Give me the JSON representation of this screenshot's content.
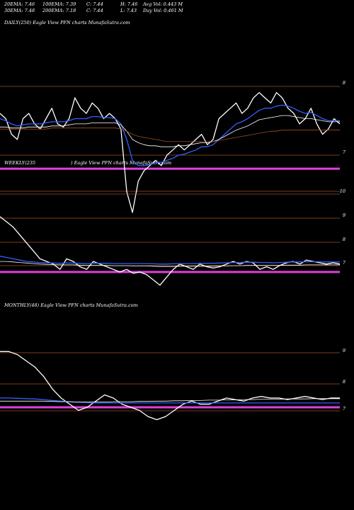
{
  "header": {
    "row1": [
      "20EMA: 7.46",
      "100EMA: 7.39",
      "C: 7.44",
      "H: 7.46",
      "Avg Vol: 0.443 M"
    ],
    "row2": [
      "30EMA: 7.48",
      "200EMA: 7.18",
      "C: 7.44",
      "L: 7.43",
      "Day Vol: 0.461 M"
    ]
  },
  "panels": {
    "daily": {
      "label": "DAILY(250) Eagle  View  PFN  charts MunafaSutra.com"
    },
    "weekly": {
      "label_left": "WEEKLY(235",
      "label_right": ") Eagle  View  PFN  charts MunafaSutra.com"
    },
    "monthly": {
      "label": "MONTHLY(48) Eagle  View  PFN  charts MunafaSutra.com"
    }
  },
  "colors": {
    "price": "#ffffff",
    "ema_blue": "#3060ff",
    "ema_alt": "#ffffff",
    "magenta": "#e040e0",
    "brown": "#a05020",
    "background": "#000000"
  },
  "chart_data": [
    {
      "type": "line",
      "name": "daily",
      "yticks": [
        "8",
        "7"
      ],
      "ylim": [
        6.6,
        8.4
      ],
      "series": [
        {
          "name": "price",
          "values": [
            7.55,
            7.5,
            7.35,
            7.3,
            7.5,
            7.55,
            7.45,
            7.4,
            7.5,
            7.6,
            7.45,
            7.42,
            7.5,
            7.7,
            7.6,
            7.55,
            7.65,
            7.6,
            7.5,
            7.55,
            7.5,
            7.4,
            6.8,
            6.6,
            6.9,
            7.0,
            7.05,
            7.1,
            7.05,
            7.15,
            7.2,
            7.25,
            7.2,
            7.25,
            7.3,
            7.35,
            7.25,
            7.3,
            7.5,
            7.55,
            7.6,
            7.65,
            7.55,
            7.6,
            7.7,
            7.75,
            7.7,
            7.65,
            7.75,
            7.7,
            7.6,
            7.55,
            7.45,
            7.5,
            7.6,
            7.45,
            7.35,
            7.4,
            7.5,
            7.45
          ]
        },
        {
          "name": "ema_blue",
          "values": [
            7.5,
            7.48,
            7.45,
            7.43,
            7.44,
            7.45,
            7.45,
            7.45,
            7.46,
            7.47,
            7.47,
            7.47,
            7.48,
            7.5,
            7.5,
            7.5,
            7.52,
            7.52,
            7.51,
            7.51,
            7.5,
            7.45,
            7.3,
            7.1,
            7.05,
            7.05,
            7.06,
            7.08,
            7.08,
            7.1,
            7.12,
            7.15,
            7.16,
            7.18,
            7.2,
            7.23,
            7.23,
            7.25,
            7.3,
            7.35,
            7.4,
            7.45,
            7.47,
            7.5,
            7.54,
            7.58,
            7.6,
            7.6,
            7.62,
            7.63,
            7.62,
            7.6,
            7.57,
            7.55,
            7.56,
            7.53,
            7.5,
            7.48,
            7.48,
            7.48
          ]
        },
        {
          "name": "ema_white",
          "values": [
            7.42,
            7.42,
            7.41,
            7.41,
            7.41,
            7.42,
            7.42,
            7.42,
            7.42,
            7.43,
            7.43,
            7.43,
            7.44,
            7.45,
            7.45,
            7.45,
            7.46,
            7.46,
            7.46,
            7.46,
            7.46,
            7.44,
            7.38,
            7.3,
            7.27,
            7.25,
            7.24,
            7.24,
            7.23,
            7.23,
            7.23,
            7.24,
            7.24,
            7.25,
            7.26,
            7.27,
            7.27,
            7.28,
            7.3,
            7.33,
            7.36,
            7.39,
            7.41,
            7.43,
            7.46,
            7.49,
            7.5,
            7.51,
            7.52,
            7.53,
            7.53,
            7.52,
            7.51,
            7.5,
            7.5,
            7.49,
            7.48,
            7.47,
            7.47,
            7.47
          ]
        },
        {
          "name": "ema_brown",
          "values": [
            7.4,
            7.4,
            7.4,
            7.4,
            7.4,
            7.4,
            7.4,
            7.4,
            7.4,
            7.41,
            7.41,
            7.41,
            7.41,
            7.41,
            7.41,
            7.41,
            7.41,
            7.41,
            7.41,
            7.41,
            7.41,
            7.4,
            7.38,
            7.35,
            7.33,
            7.32,
            7.31,
            7.3,
            7.29,
            7.28,
            7.28,
            7.28,
            7.28,
            7.28,
            7.28,
            7.28,
            7.28,
            7.28,
            7.29,
            7.3,
            7.31,
            7.32,
            7.33,
            7.34,
            7.35,
            7.36,
            7.37,
            7.38,
            7.38,
            7.39,
            7.39,
            7.39,
            7.39,
            7.39,
            7.39,
            7.39,
            7.39,
            7.39,
            7.39,
            7.39
          ]
        }
      ]
    },
    {
      "type": "line",
      "name": "weekly",
      "yticks": [
        "10",
        "9",
        "8",
        "7"
      ],
      "ylim": [
        6.4,
        10.3
      ],
      "series": [
        {
          "name": "price",
          "values": [
            9.2,
            9.0,
            8.8,
            8.5,
            8.2,
            7.9,
            7.6,
            7.5,
            7.4,
            7.2,
            7.6,
            7.5,
            7.3,
            7.2,
            7.5,
            7.4,
            7.3,
            7.2,
            7.1,
            7.2,
            7.05,
            7.1,
            7.0,
            6.8,
            6.6,
            6.9,
            7.2,
            7.4,
            7.3,
            7.2,
            7.4,
            7.3,
            7.25,
            7.3,
            7.4,
            7.5,
            7.4,
            7.5,
            7.45,
            7.2,
            7.3,
            7.2,
            7.35,
            7.45,
            7.5,
            7.4,
            7.55,
            7.5,
            7.45,
            7.4,
            7.45,
            7.4
          ]
        },
        {
          "name": "ema_blue",
          "values": [
            7.7,
            7.65,
            7.6,
            7.55,
            7.5,
            7.48,
            7.46,
            7.45,
            7.44,
            7.43,
            7.44,
            7.44,
            7.43,
            7.42,
            7.43,
            7.43,
            7.43,
            7.42,
            7.42,
            7.42,
            7.42,
            7.42,
            7.42,
            7.41,
            7.4,
            7.4,
            7.41,
            7.42,
            7.42,
            7.42,
            7.43,
            7.43,
            7.43,
            7.44,
            7.45,
            7.46,
            7.46,
            7.47,
            7.47,
            7.46,
            7.46,
            7.45,
            7.46,
            7.47,
            7.48,
            7.48,
            7.49,
            7.49,
            7.49,
            7.48,
            7.48,
            7.48
          ]
        },
        {
          "name": "ema_white",
          "values": [
            7.5,
            7.5,
            7.48,
            7.46,
            7.44,
            7.42,
            7.4,
            7.39,
            7.38,
            7.37,
            7.37,
            7.37,
            7.36,
            7.35,
            7.35,
            7.35,
            7.35,
            7.34,
            7.34,
            7.34,
            7.33,
            7.33,
            7.33,
            7.32,
            7.31,
            7.31,
            7.31,
            7.32,
            7.32,
            7.32,
            7.32,
            7.32,
            7.32,
            7.33,
            7.33,
            7.34,
            7.34,
            7.35,
            7.35,
            7.35,
            7.35,
            7.35,
            7.35,
            7.36,
            7.36,
            7.36,
            7.37,
            7.37,
            7.37,
            7.37,
            7.37,
            7.37
          ]
        }
      ]
    },
    {
      "type": "line",
      "name": "monthly",
      "yticks": [
        "9",
        "8",
        "7"
      ],
      "ylim": [
        6.2,
        9.4
      ],
      "series": [
        {
          "name": "price",
          "values": [
            8.8,
            8.8,
            8.7,
            8.5,
            8.3,
            8.0,
            7.6,
            7.3,
            7.1,
            6.9,
            7.0,
            7.2,
            7.4,
            7.3,
            7.1,
            7.0,
            6.9,
            6.7,
            6.6,
            6.7,
            6.9,
            7.1,
            7.2,
            7.1,
            7.1,
            7.2,
            7.3,
            7.25,
            7.2,
            7.3,
            7.35,
            7.3,
            7.3,
            7.25,
            7.3,
            7.35,
            7.3,
            7.25,
            7.3,
            7.3
          ]
        },
        {
          "name": "ema_blue",
          "values": [
            7.3,
            7.3,
            7.29,
            7.28,
            7.27,
            7.25,
            7.22,
            7.2,
            7.18,
            7.16,
            7.15,
            7.14,
            7.14,
            7.14,
            7.14,
            7.14,
            7.14,
            7.14,
            7.14,
            7.14,
            7.14,
            7.14,
            7.14,
            7.14,
            7.14,
            7.14,
            7.14,
            7.14,
            7.14,
            7.14,
            7.14,
            7.14,
            7.14,
            7.14,
            7.14,
            7.14,
            7.14,
            7.14,
            7.14,
            7.14
          ]
        },
        {
          "name": "ema_white",
          "values": [
            7.2,
            7.2,
            7.2,
            7.2,
            7.2,
            7.2,
            7.19,
            7.18,
            7.18,
            7.17,
            7.17,
            7.17,
            7.17,
            7.18,
            7.18,
            7.18,
            7.19,
            7.19,
            7.2,
            7.2,
            7.21,
            7.21,
            7.22,
            7.22,
            7.23,
            7.23,
            7.24,
            7.24,
            7.25,
            7.25,
            7.26,
            7.26,
            7.26,
            7.27,
            7.27,
            7.27,
            7.28,
            7.28,
            7.28,
            7.28
          ]
        }
      ]
    }
  ]
}
